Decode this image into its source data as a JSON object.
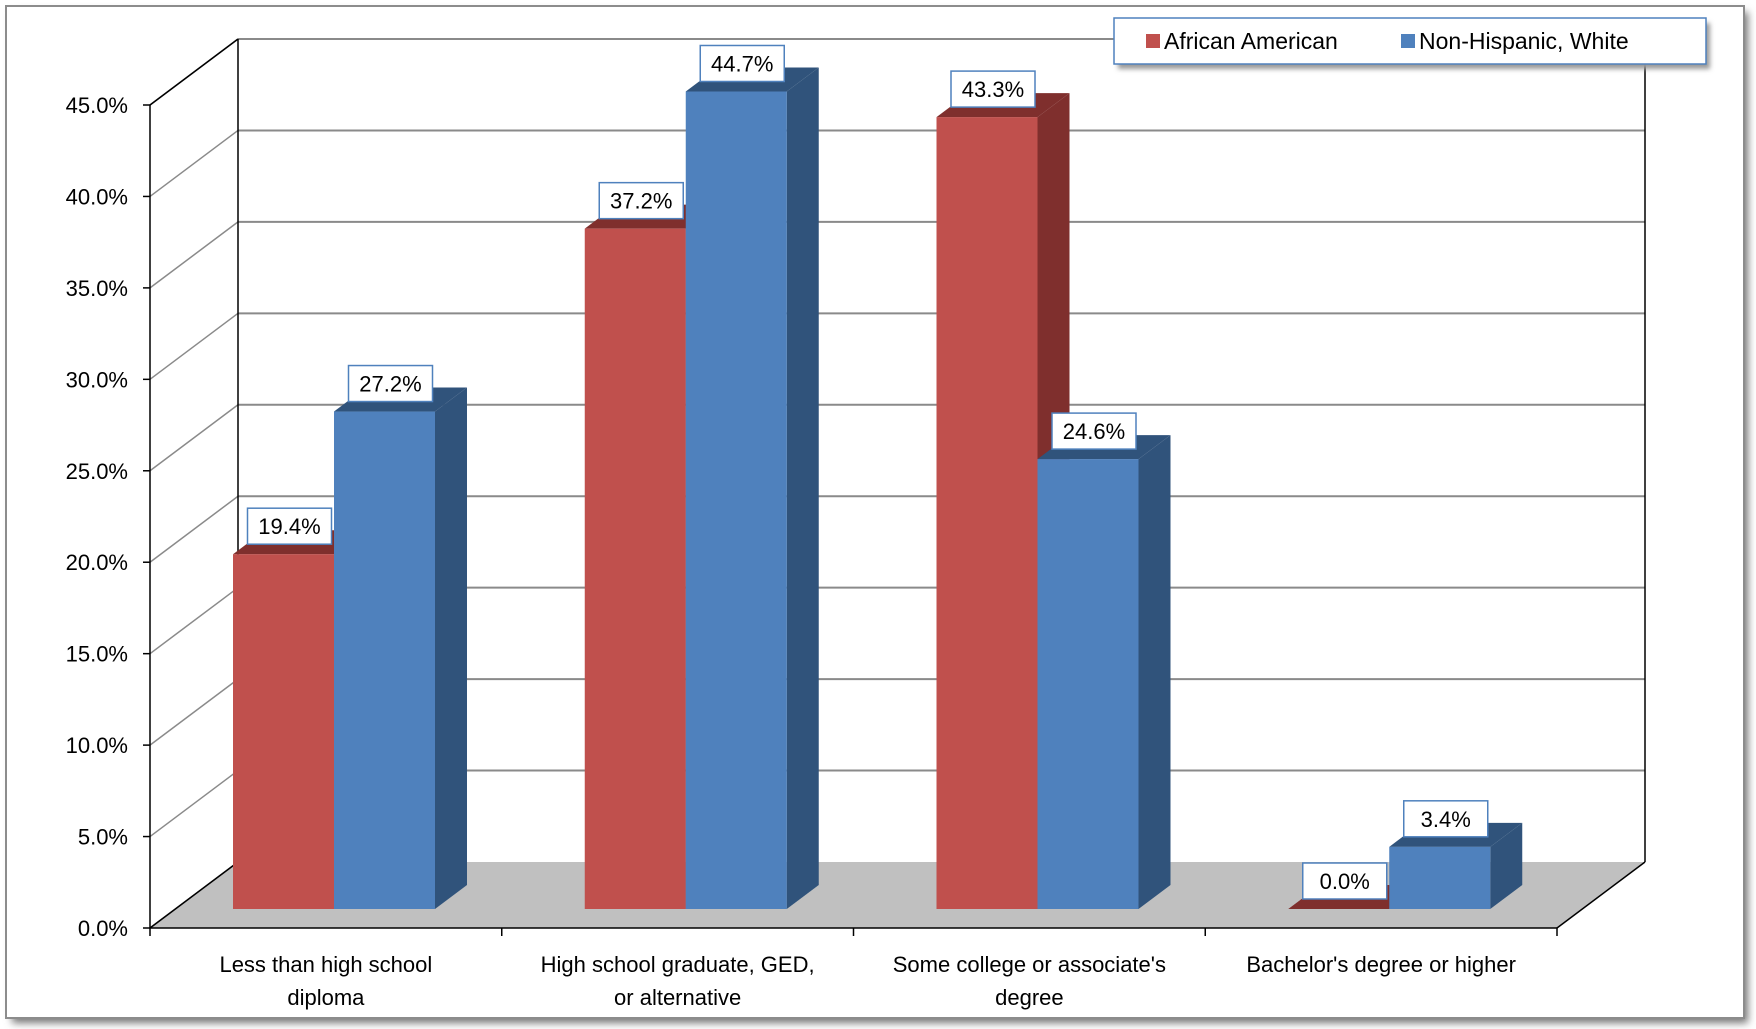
{
  "chart_data": {
    "type": "bar",
    "categories": [
      [
        "Less than high school",
        "diploma"
      ],
      [
        "High school graduate, GED,",
        "or alternative"
      ],
      [
        "Some college or associate's",
        "degree"
      ],
      [
        "Bachelor's degree or higher"
      ]
    ],
    "series": [
      {
        "name": "African American",
        "color": "#C0504D",
        "side_color": "#7F2F2D",
        "values": [
          19.4,
          37.2,
          43.3,
          0.0
        ],
        "labels": [
          "19.4%",
          "37.2%",
          "43.3%",
          "0.0%"
        ]
      },
      {
        "name": "Non-Hispanic, White",
        "color": "#4F81BD",
        "side_color": "#30537B",
        "values": [
          27.2,
          44.7,
          24.6,
          3.4
        ],
        "labels": [
          "27.2%",
          "44.7%",
          "24.6%",
          "3.4%"
        ]
      }
    ],
    "y_ticks": [
      "0.0%",
      "5.0%",
      "10.0%",
      "15.0%",
      "20.0%",
      "25.0%",
      "30.0%",
      "35.0%",
      "40.0%",
      "45.0%"
    ],
    "ylim": [
      0,
      45
    ],
    "grid": true,
    "legend_position": "top-right",
    "style": "3d-clustered-column"
  }
}
